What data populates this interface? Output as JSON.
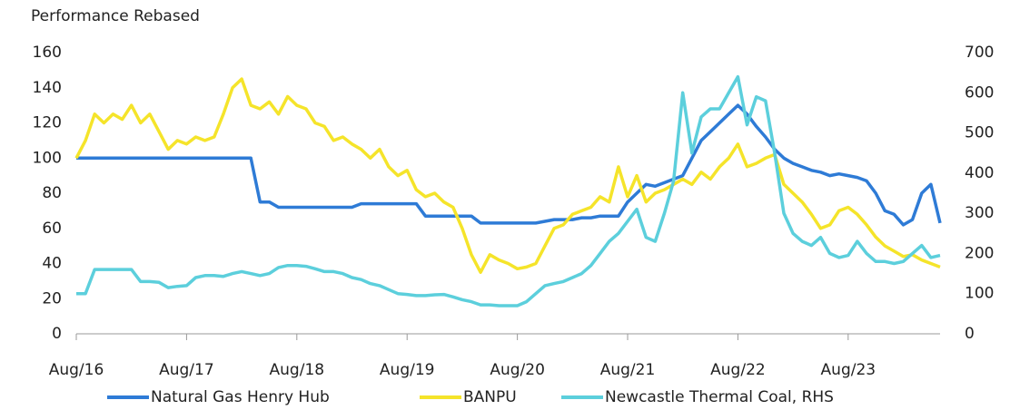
{
  "chart_data": {
    "type": "line",
    "yaxis_title": "Performance Rebased",
    "x": [
      "2016-08",
      "2016-09",
      "2016-10",
      "2016-11",
      "2016-12",
      "2017-01",
      "2017-02",
      "2017-03",
      "2017-04",
      "2017-05",
      "2017-06",
      "2017-07",
      "2017-08",
      "2017-09",
      "2017-10",
      "2017-11",
      "2017-12",
      "2018-01",
      "2018-02",
      "2018-03",
      "2018-04",
      "2018-05",
      "2018-06",
      "2018-07",
      "2018-08",
      "2018-09",
      "2018-10",
      "2018-11",
      "2018-12",
      "2019-01",
      "2019-02",
      "2019-03",
      "2019-04",
      "2019-05",
      "2019-06",
      "2019-07",
      "2019-08",
      "2019-09",
      "2019-10",
      "2019-11",
      "2019-12",
      "2020-01",
      "2020-02",
      "2020-03",
      "2020-04",
      "2020-05",
      "2020-06",
      "2020-07",
      "2020-08",
      "2020-09",
      "2020-10",
      "2020-11",
      "2020-12",
      "2021-01",
      "2021-02",
      "2021-03",
      "2021-04",
      "2021-05",
      "2021-06",
      "2021-07",
      "2021-08",
      "2021-09",
      "2021-10",
      "2021-11",
      "2021-12",
      "2022-01",
      "2022-02",
      "2022-03",
      "2022-04",
      "2022-05",
      "2022-06",
      "2022-07",
      "2022-08",
      "2022-09",
      "2022-10",
      "2022-11",
      "2022-12",
      "2023-01",
      "2023-02",
      "2023-03",
      "2023-04",
      "2023-05",
      "2023-06",
      "2023-07",
      "2023-08",
      "2023-09",
      "2023-10",
      "2023-11",
      "2023-12",
      "2024-01",
      "2024-02",
      "2024-03",
      "2024-04",
      "2024-05",
      "2024-06"
    ],
    "series": [
      {
        "name": "Natural Gas Henry Hub",
        "color": "#2e7bd6",
        "values": [
          100,
          100,
          100,
          100,
          100,
          100,
          100,
          100,
          100,
          100,
          100,
          100,
          100,
          100,
          100,
          100,
          100,
          100,
          100,
          100,
          75,
          75,
          72,
          72,
          72,
          72,
          72,
          72,
          72,
          72,
          72,
          74,
          74,
          74,
          74,
          74,
          74,
          74,
          67,
          67,
          67,
          67,
          67,
          67,
          63,
          63,
          63,
          63,
          63,
          63,
          63,
          64,
          65,
          65,
          65,
          66,
          66,
          67,
          67,
          67,
          75,
          80,
          85,
          84,
          86,
          88,
          90,
          100,
          110,
          115,
          120,
          125,
          130,
          125,
          118,
          112,
          105,
          100,
          97,
          95,
          93,
          92,
          90,
          91,
          90,
          89,
          87,
          80,
          70,
          68,
          62,
          65,
          80,
          85,
          63
        ]
      },
      {
        "name": "BANPU",
        "color": "#f5e42a",
        "values": [
          100,
          110,
          125,
          120,
          125,
          122,
          130,
          120,
          125,
          115,
          105,
          110,
          108,
          112,
          110,
          112,
          125,
          140,
          145,
          130,
          128,
          132,
          125,
          135,
          130,
          128,
          120,
          118,
          110,
          112,
          108,
          105,
          100,
          105,
          95,
          90,
          93,
          82,
          78,
          80,
          75,
          72,
          60,
          45,
          35,
          45,
          42,
          40,
          37,
          38,
          40,
          50,
          60,
          62,
          68,
          70,
          72,
          78,
          75,
          95,
          78,
          90,
          75,
          80,
          82,
          85,
          88,
          85,
          92,
          88,
          95,
          100,
          108,
          95,
          97,
          100,
          102,
          85,
          80,
          75,
          68,
          60,
          62,
          70,
          72,
          68,
          62,
          55,
          50,
          47,
          44,
          45,
          42,
          40,
          38
        ]
      },
      {
        "name": "Newcastle Thermal Coal, RHS",
        "color": "#5ccfdc",
        "axis": "y2",
        "values": [
          100,
          100,
          160,
          160,
          160,
          160,
          160,
          130,
          130,
          128,
          115,
          118,
          120,
          140,
          145,
          145,
          143,
          150,
          155,
          150,
          145,
          150,
          165,
          170,
          170,
          168,
          162,
          155,
          155,
          150,
          140,
          135,
          125,
          120,
          110,
          100,
          98,
          95,
          95,
          97,
          98,
          92,
          85,
          80,
          72,
          72,
          70,
          70,
          70,
          80,
          100,
          120,
          125,
          130,
          140,
          150,
          170,
          200,
          230,
          250,
          280,
          310,
          240,
          230,
          300,
          380,
          600,
          450,
          540,
          560,
          560,
          600,
          640,
          520,
          590,
          580,
          450,
          300,
          250,
          230,
          220,
          240,
          200,
          190,
          195,
          230,
          200,
          180,
          180,
          175,
          180,
          200,
          220,
          190,
          195
        ]
      }
    ],
    "xlim": [
      "2016-08",
      "2024-06"
    ],
    "xticks": [
      {
        "value": "2016-08",
        "label": "Aug/16"
      },
      {
        "value": "2017-08",
        "label": "Aug/17"
      },
      {
        "value": "2018-08",
        "label": "Aug/18"
      },
      {
        "value": "2019-08",
        "label": "Aug/19"
      },
      {
        "value": "2020-08",
        "label": "Aug/20"
      },
      {
        "value": "2021-08",
        "label": "Aug/21"
      },
      {
        "value": "2022-08",
        "label": "Aug/22"
      },
      {
        "value": "2023-08",
        "label": "Aug/23"
      }
    ],
    "ylim": [
      0,
      160
    ],
    "yticks": [
      0,
      20,
      40,
      60,
      80,
      100,
      120,
      140,
      160
    ],
    "y2lim": [
      0,
      700
    ],
    "y2ticks": [
      0,
      100,
      200,
      300,
      400,
      500,
      600,
      700
    ],
    "legend": "bottom"
  }
}
